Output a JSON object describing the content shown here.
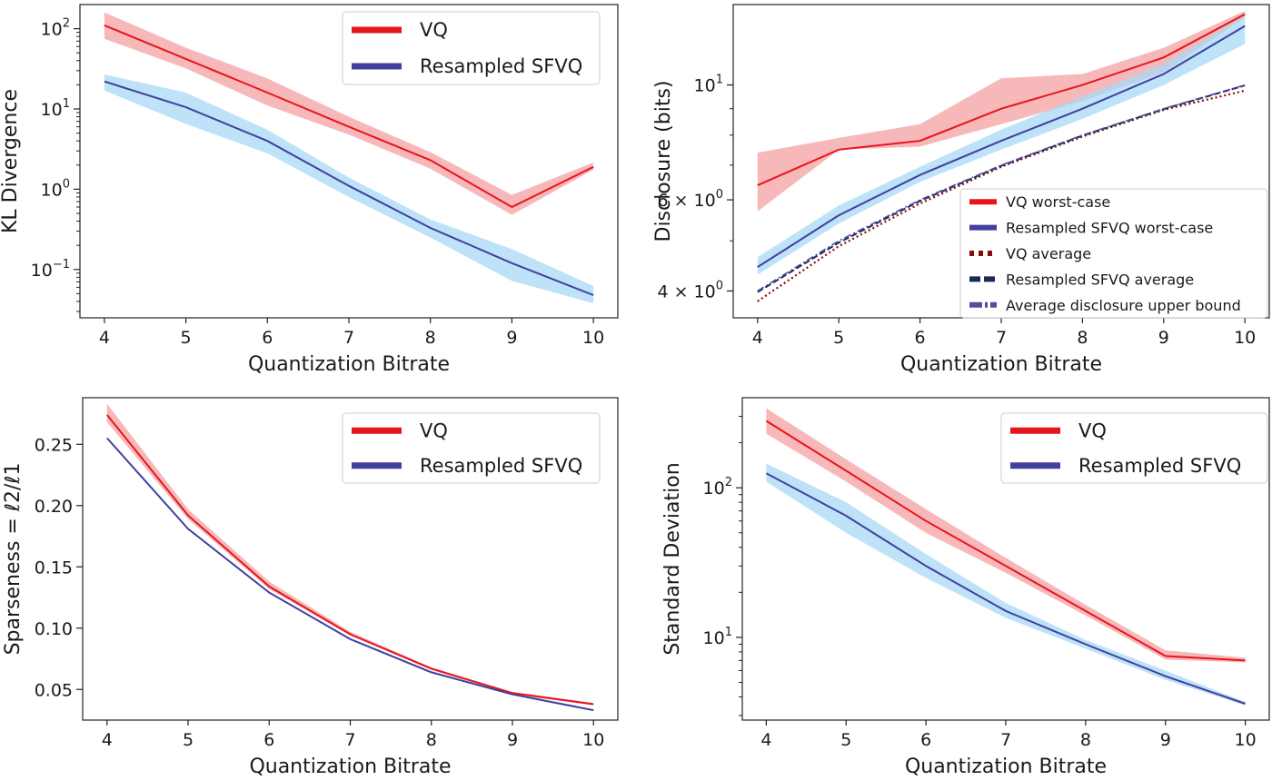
{
  "chart_data": [
    {
      "id": "kl",
      "type": "line",
      "title": "",
      "xlabel": "Quantization Bitrate",
      "ylabel": "KL Divergence",
      "yscale": "log",
      "ylim": [
        0.025,
        200
      ],
      "xlim": [
        3.7,
        10.3
      ],
      "xticks": [
        4,
        5,
        6,
        7,
        8,
        9,
        10
      ],
      "xtick_labels": [
        "4",
        "5",
        "6",
        "7",
        "8",
        "9",
        "10"
      ],
      "yticks": [
        0.1,
        1,
        10,
        100
      ],
      "ytick_labels": [
        [
          "10",
          "−1"
        ],
        [
          "10",
          "0"
        ],
        [
          "10",
          "1"
        ],
        [
          "10",
          "2"
        ]
      ],
      "legend_position": "top-right",
      "legend_font": "large",
      "x": [
        4,
        5,
        6,
        7,
        8,
        9,
        10
      ],
      "series": [
        {
          "name": "VQ",
          "color": "#e8141c",
          "band_color": "#f4a0a3",
          "style": "solid",
          "values": [
            110,
            42,
            16,
            6.0,
            2.3,
            0.6,
            1.9
          ],
          "lower": [
            75,
            32,
            11,
            4.8,
            1.8,
            0.48,
            1.75
          ],
          "upper": [
            160,
            58,
            24,
            8.0,
            2.9,
            0.85,
            2.15
          ]
        },
        {
          "name": "Resampled SFVQ",
          "color": "#4040a0",
          "band_color": "#a8d8f4",
          "style": "solid",
          "values": [
            22,
            10.5,
            4.0,
            1.1,
            0.33,
            0.12,
            0.048
          ],
          "lower": [
            17,
            6.5,
            2.8,
            0.8,
            0.25,
            0.072,
            0.038
          ],
          "upper": [
            27,
            16,
            5.5,
            1.4,
            0.42,
            0.18,
            0.062
          ]
        }
      ]
    },
    {
      "id": "disclosure",
      "type": "line",
      "title": "",
      "xlabel": "Quantization Bitrate",
      "ylabel": "Disclosure (bits)",
      "yscale": "log",
      "ylim": [
        3.55,
        14.3
      ],
      "xlim": [
        3.7,
        10.3
      ],
      "xticks": [
        4,
        5,
        6,
        7,
        8,
        9,
        10
      ],
      "xtick_labels": [
        "4",
        "5",
        "6",
        "7",
        "8",
        "9",
        "10"
      ],
      "yticks": [
        4,
        6,
        10
      ],
      "ytick_labels": [
        [
          "4 × 10",
          "0"
        ],
        [
          "6 × 10",
          "0"
        ],
        [
          "10",
          "1"
        ]
      ],
      "minor_yticks": [
        5,
        7,
        8,
        9
      ],
      "legend_position": "lower-right",
      "legend_font": "small",
      "x": [
        4,
        5,
        6,
        7,
        8,
        9,
        10
      ],
      "series": [
        {
          "name": "VQ worst-case",
          "color": "#e8141c",
          "band_color": "#f4a0a3",
          "style": "solid",
          "values": [
            6.4,
            7.5,
            7.8,
            9.0,
            10.0,
            11.3,
            13.7
          ],
          "lower": [
            5.7,
            7.5,
            7.6,
            8.4,
            9.3,
            10.6,
            13.5
          ],
          "upper": [
            7.4,
            7.9,
            8.4,
            10.3,
            10.5,
            11.8,
            13.9
          ]
        },
        {
          "name": "Resampled SFVQ worst-case",
          "color": "#4040a0",
          "band_color": "#a8d8f4",
          "style": "solid",
          "values": [
            4.45,
            5.6,
            6.7,
            7.8,
            9.0,
            10.5,
            13.0
          ],
          "lower": [
            4.3,
            5.4,
            6.5,
            7.5,
            8.6,
            10.0,
            12.0
          ],
          "upper": [
            4.65,
            5.85,
            6.95,
            8.2,
            9.5,
            11.0,
            13.6
          ]
        },
        {
          "name": "VQ average",
          "color": "#8b0a0a",
          "style": "dotted",
          "values": [
            3.82,
            4.88,
            5.9,
            6.95,
            7.95,
            8.95,
            9.75
          ]
        },
        {
          "name": "Resampled SFVQ average",
          "color": "#1a2a55",
          "style": "dashed",
          "values": [
            3.98,
            4.96,
            5.97,
            6.98,
            7.98,
            8.98,
            9.98
          ]
        },
        {
          "name": "Average disclosure upper bound",
          "color": "#5a4a9a",
          "style": "dashdot",
          "values": [
            4.0,
            5.0,
            6.0,
            7.0,
            8.0,
            9.0,
            10.0
          ]
        }
      ]
    },
    {
      "id": "sparseness",
      "type": "line",
      "title": "",
      "xlabel": "Quantization Bitrate",
      "ylabel": "Sparseness = ℓ2/ℓ1",
      "yscale": "linear",
      "ylim": [
        0.025,
        0.288
      ],
      "xlim": [
        3.7,
        10.3
      ],
      "xticks": [
        4,
        5,
        6,
        7,
        8,
        9,
        10
      ],
      "xtick_labels": [
        "4",
        "5",
        "6",
        "7",
        "8",
        "9",
        "10"
      ],
      "yticks": [
        0.05,
        0.1,
        0.15,
        0.2,
        0.25
      ],
      "ytick_labels": [
        [
          "0.05",
          ""
        ],
        [
          "0.10",
          ""
        ],
        [
          "0.15",
          ""
        ],
        [
          "0.20",
          ""
        ],
        [
          "0.25",
          ""
        ]
      ],
      "legend_position": "top-right",
      "legend_font": "large",
      "x": [
        4,
        5,
        6,
        7,
        8,
        9,
        10
      ],
      "series": [
        {
          "name": "VQ",
          "color": "#e8141c",
          "band_color": "#f4a0a3",
          "style": "solid",
          "values": [
            0.274,
            0.192,
            0.134,
            0.095,
            0.067,
            0.047,
            0.038
          ],
          "lower": [
            0.268,
            0.189,
            0.132,
            0.094,
            0.066,
            0.046,
            0.037
          ],
          "upper": [
            0.283,
            0.197,
            0.138,
            0.097,
            0.068,
            0.048,
            0.039
          ]
        },
        {
          "name": "Resampled SFVQ",
          "color": "#4040a0",
          "band_color": "#a8d8f4",
          "style": "solid",
          "values": [
            0.255,
            0.181,
            0.129,
            0.091,
            0.064,
            0.046,
            0.033
          ],
          "lower": [
            0.255,
            0.181,
            0.129,
            0.091,
            0.064,
            0.046,
            0.033
          ],
          "upper": [
            0.256,
            0.182,
            0.13,
            0.092,
            0.065,
            0.047,
            0.034
          ]
        }
      ]
    },
    {
      "id": "stddev",
      "type": "line",
      "title": "",
      "xlabel": "Quantization Bitrate",
      "ylabel": "Standard Deviation",
      "yscale": "log",
      "ylim": [
        2.8,
        400
      ],
      "xlim": [
        3.7,
        10.3
      ],
      "xticks": [
        4,
        5,
        6,
        7,
        8,
        9,
        10
      ],
      "xtick_labels": [
        "4",
        "5",
        "6",
        "7",
        "8",
        "9",
        "10"
      ],
      "yticks": [
        10,
        100
      ],
      "ytick_labels": [
        [
          "10",
          "1"
        ],
        [
          "10",
          "2"
        ]
      ],
      "legend_position": "top-right",
      "legend_font": "large",
      "x": [
        4,
        5,
        6,
        7,
        8,
        9,
        10
      ],
      "series": [
        {
          "name": "VQ",
          "color": "#e8141c",
          "band_color": "#f4a0a3",
          "style": "solid",
          "values": [
            280,
            130,
            60,
            30,
            15,
            7.5,
            7.0
          ],
          "lower": [
            230,
            110,
            50,
            27,
            14,
            7.1,
            6.8
          ],
          "upper": [
            340,
            155,
            72,
            34,
            16.5,
            8.2,
            7.3
          ]
        },
        {
          "name": "Resampled SFVQ",
          "color": "#4040a0",
          "band_color": "#a8d8f4",
          "style": "solid",
          "values": [
            125,
            65,
            30,
            15,
            9.0,
            5.5,
            3.6
          ],
          "lower": [
            110,
            50,
            25,
            13.5,
            8.4,
            5.2,
            3.5
          ],
          "upper": [
            145,
            80,
            36,
            17,
            9.6,
            6.0,
            3.7
          ]
        }
      ]
    }
  ]
}
